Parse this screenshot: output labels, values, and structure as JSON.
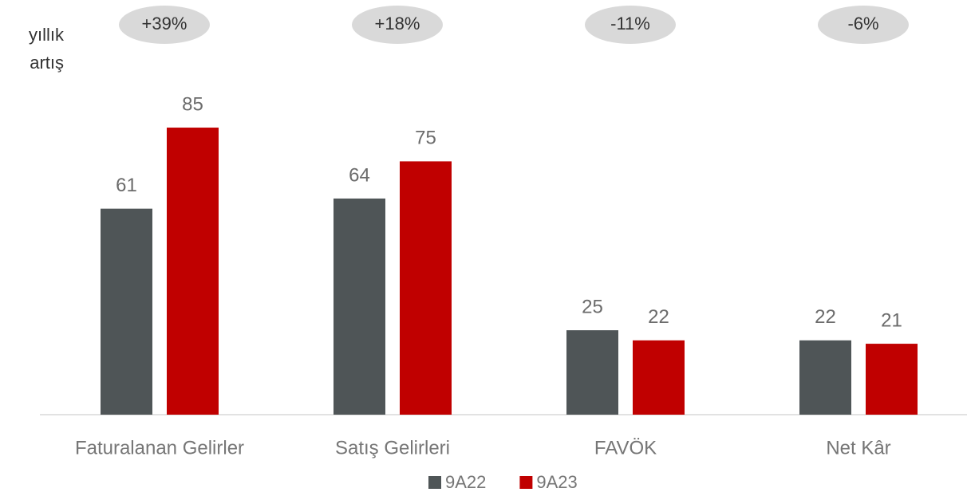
{
  "chart_data": {
    "type": "bar",
    "categories": [
      "Faturalanan Gelirler",
      "Satış Gelirleri",
      "FAVÖK",
      "Net Kâr"
    ],
    "series": [
      {
        "name": "9A22",
        "color": "#4f5557",
        "values": [
          61,
          64,
          25,
          22
        ]
      },
      {
        "name": "9A23",
        "color": "#c00000",
        "values": [
          85,
          75,
          22,
          21
        ]
      }
    ],
    "annotation_title": [
      "yıllık",
      "artış"
    ],
    "annotations": [
      "+39%",
      "+18%",
      "-11%",
      "-6%"
    ]
  }
}
